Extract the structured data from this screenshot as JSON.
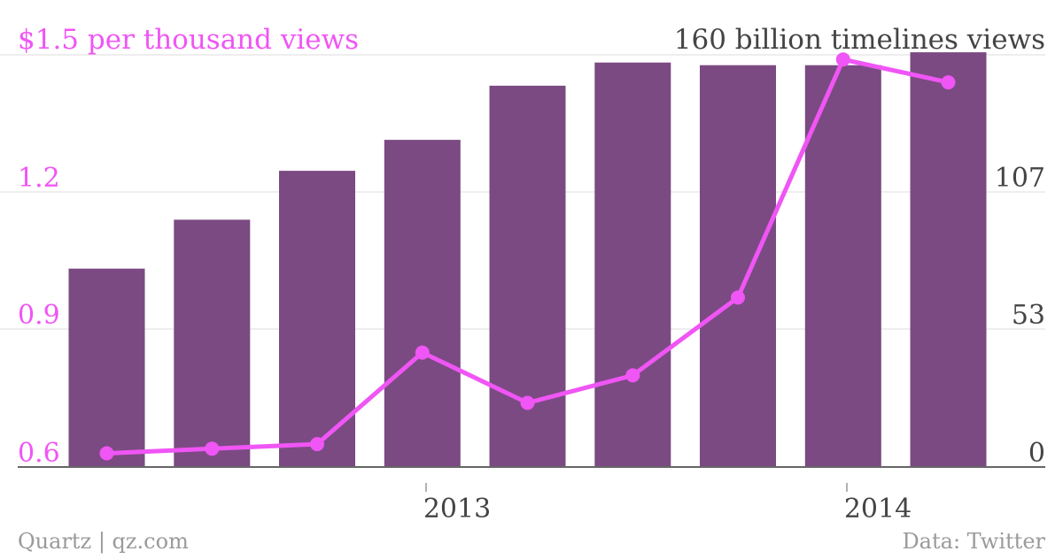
{
  "chart_data": {
    "type": "bar+line",
    "left_axis_title": "$1.5 per thousand views",
    "right_axis_title": "160 billion timelines views",
    "left_axis_ticks": [
      "1.2",
      "0.9",
      "0.6"
    ],
    "right_axis_ticks": [
      "107",
      "53",
      "0"
    ],
    "x_axis_ticks": [
      "2013",
      "2014"
    ],
    "left_ylim": [
      0.6,
      1.5
    ],
    "right_ylim": [
      0,
      160
    ],
    "grid": true,
    "bars": {
      "axis": "right",
      "values": [
        77,
        96,
        115,
        127,
        148,
        157,
        156,
        156,
        161
      ]
    },
    "line": {
      "axis": "left",
      "values": [
        0.63,
        0.64,
        0.65,
        0.85,
        0.74,
        0.8,
        0.97,
        1.49,
        1.44
      ]
    },
    "colors": {
      "bar": "#7b4a82",
      "line": "#f055f5",
      "left_axis_text": "#f055f5",
      "right_axis_text": "#444444",
      "grid": "#dddddd",
      "baseline": "#666666",
      "footer": "#9a9a9a"
    }
  },
  "footer": {
    "source_left": "Quartz | qz.com",
    "source_right": "Data: Twitter"
  }
}
